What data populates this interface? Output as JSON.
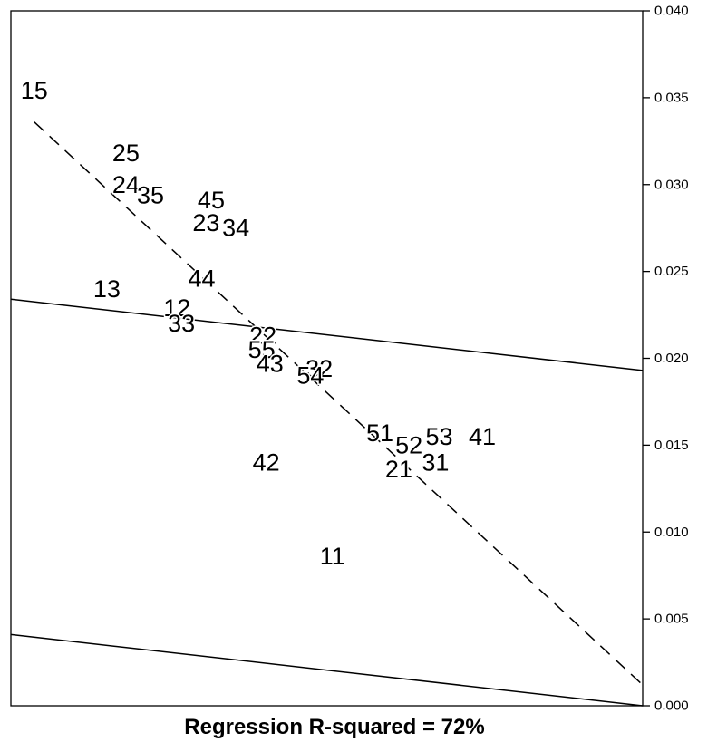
{
  "chart_data": {
    "type": "scatter",
    "caption": "Regression R-squared = 72%",
    "y_axis": {
      "side": "right",
      "range": [
        0.0,
        0.04
      ],
      "ticks": [
        0.0,
        0.005,
        0.01,
        0.015,
        0.02,
        0.025,
        0.03,
        0.035,
        0.04
      ],
      "tick_labels": [
        "0.000",
        "0.005",
        "0.010",
        "0.015",
        "0.020",
        "0.025",
        "0.030",
        "0.035",
        "0.040"
      ]
    },
    "x_axis": {
      "range": [
        0,
        1
      ],
      "labels_shown": false
    },
    "points": [
      {
        "label": "15",
        "x": 0.037,
        "y": 0.0354
      },
      {
        "label": "25",
        "x": 0.182,
        "y": 0.0318
      },
      {
        "label": "24",
        "x": 0.182,
        "y": 0.03
      },
      {
        "label": "35",
        "x": 0.221,
        "y": 0.0294
      },
      {
        "label": "45",
        "x": 0.317,
        "y": 0.0291
      },
      {
        "label": "23",
        "x": 0.309,
        "y": 0.0278
      },
      {
        "label": "34",
        "x": 0.356,
        "y": 0.0275
      },
      {
        "label": "44",
        "x": 0.302,
        "y": 0.0246
      },
      {
        "label": "13",
        "x": 0.152,
        "y": 0.024
      },
      {
        "label": "12",
        "x": 0.263,
        "y": 0.0229
      },
      {
        "label": "33",
        "x": 0.27,
        "y": 0.022
      },
      {
        "label": "22",
        "x": 0.399,
        "y": 0.0213
      },
      {
        "label": "55",
        "x": 0.397,
        "y": 0.0205
      },
      {
        "label": "43",
        "x": 0.41,
        "y": 0.0197
      },
      {
        "label": "32",
        "x": 0.488,
        "y": 0.0194
      },
      {
        "label": "54",
        "x": 0.474,
        "y": 0.019
      },
      {
        "label": "51",
        "x": 0.584,
        "y": 0.0157
      },
      {
        "label": "52",
        "x": 0.63,
        "y": 0.015
      },
      {
        "label": "53",
        "x": 0.678,
        "y": 0.0155
      },
      {
        "label": "41",
        "x": 0.746,
        "y": 0.0155
      },
      {
        "label": "31",
        "x": 0.672,
        "y": 0.014
      },
      {
        "label": "21",
        "x": 0.614,
        "y": 0.0136
      },
      {
        "label": "42",
        "x": 0.404,
        "y": 0.014
      },
      {
        "label": "11",
        "x": 0.509,
        "y": 0.0086
      }
    ],
    "lines": [
      {
        "style": "dashed",
        "x": [
          0.037,
          1.0
        ],
        "y": [
          0.0336,
          0.0012
        ]
      },
      {
        "style": "solid",
        "x": [
          0.0,
          1.0
        ],
        "y": [
          0.0234,
          0.0193
        ]
      },
      {
        "style": "solid",
        "x": [
          0.0,
          1.0
        ],
        "y": [
          0.0041,
          0.0
        ]
      }
    ]
  }
}
